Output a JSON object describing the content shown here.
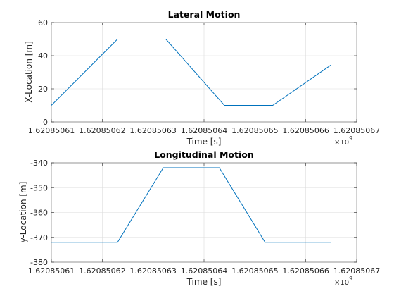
{
  "chart_data": [
    {
      "type": "line",
      "title": "Lateral Motion",
      "xlabel": "Time [s]",
      "ylabel": "X-Location [m]",
      "x_tick_labels": [
        "1.62085061",
        "1.62085062",
        "1.62085063",
        "1.62085064",
        "1.62085065",
        "1.62085066",
        "1.62085067"
      ],
      "x_exponent_base": "×10",
      "x_exponent_power": "9",
      "ylim": [
        0,
        60
      ],
      "yticks": [
        0,
        20,
        40,
        60
      ],
      "grid": true,
      "color": "#0072bd",
      "series": [
        {
          "x": [
            1.62085061,
            1.620850623,
            1.6208506325,
            1.620850644,
            1.6208506535,
            1.620850665
          ],
          "y": [
            10,
            50,
            50,
            10,
            10,
            34.5
          ]
        }
      ]
    },
    {
      "type": "line",
      "title": "Longitudinal Motion",
      "xlabel": "Time [s]",
      "ylabel": "y-Location [m]",
      "x_tick_labels": [
        "1.62085061",
        "1.62085062",
        "1.62085063",
        "1.62085064",
        "1.62085065",
        "1.62085066",
        "1.62085067"
      ],
      "x_exponent_base": "×10",
      "x_exponent_power": "9",
      "ylim": [
        -380,
        -340
      ],
      "yticks": [
        -380,
        -370,
        -360,
        -350,
        -340
      ],
      "grid": true,
      "color": "#0072bd",
      "series": [
        {
          "x": [
            1.62085061,
            1.62085062,
            1.620850623,
            1.620850632,
            1.620850643,
            1.620850652,
            1.620850665
          ],
          "y": [
            -372,
            -372,
            -372,
            -342,
            -342,
            -372,
            -372
          ]
        }
      ]
    }
  ]
}
